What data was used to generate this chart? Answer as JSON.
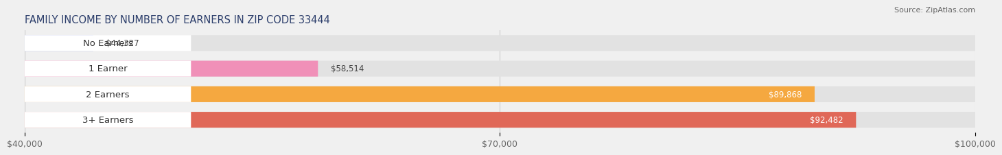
{
  "title": "FAMILY INCOME BY NUMBER OF EARNERS IN ZIP CODE 33444",
  "source": "Source: ZipAtlas.com",
  "categories": [
    "No Earners",
    "1 Earner",
    "2 Earners",
    "3+ Earners"
  ],
  "values": [
    44327,
    58514,
    89868,
    92482
  ],
  "bar_colors": [
    "#aab4e8",
    "#f090b8",
    "#f5a840",
    "#e06858"
  ],
  "value_labels": [
    "$44,327",
    "$58,514",
    "$89,868",
    "$92,482"
  ],
  "value_label_colors": [
    "#333333",
    "#333333",
    "#ffffff",
    "#ffffff"
  ],
  "x_min": 40000,
  "x_max": 100000,
  "x_ticks": [
    40000,
    70000,
    100000
  ],
  "x_tick_labels": [
    "$40,000",
    "$70,000",
    "$100,000"
  ],
  "bg_color": "#f0f0f0",
  "bar_bg_color": "#e2e2e2",
  "label_bg_color": "#ffffff",
  "title_fontsize": 10.5,
  "source_fontsize": 8,
  "label_fontsize": 9.5,
  "value_fontsize": 8.5,
  "tick_fontsize": 9
}
